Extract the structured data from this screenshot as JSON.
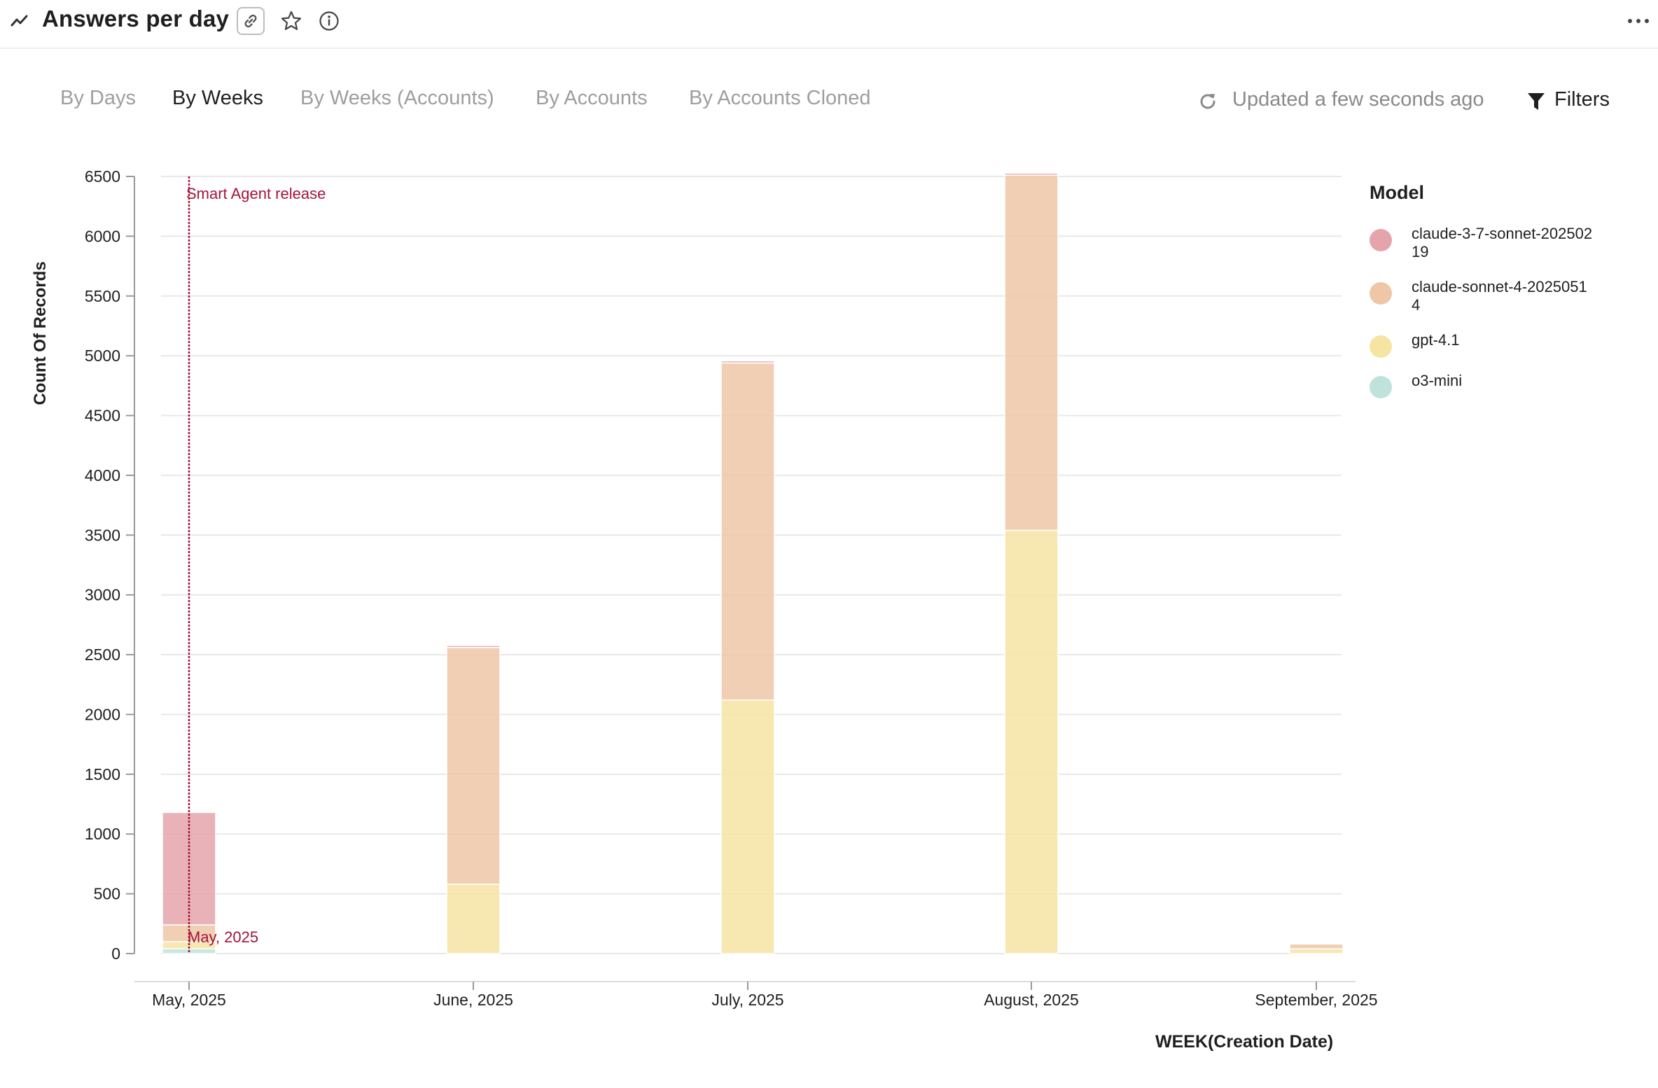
{
  "header": {
    "title": "Answers per day",
    "icons": [
      "trend-icon",
      "link-icon",
      "star-icon",
      "info-icon",
      "more-icon"
    ]
  },
  "tabs": [
    {
      "label": "By Days",
      "active": false
    },
    {
      "label": "By Weeks",
      "active": true
    },
    {
      "label": "By Weeks (Accounts)",
      "active": false
    },
    {
      "label": "By Accounts",
      "active": false
    },
    {
      "label": "By Accounts Cloned",
      "active": false
    }
  ],
  "status": {
    "updated_text": "Updated a few seconds ago"
  },
  "filters": {
    "label": "Filters"
  },
  "colors": {
    "claude-3-7-sonnet-20250219": "#e5a4ab",
    "claude-sonnet-4-20250514": "#efc7a8",
    "gpt-4.1": "#f6e4a3",
    "o3-mini": "#bde3da",
    "annotation": "#a3153b"
  },
  "chart_data": {
    "type": "bar",
    "stacked": true,
    "title": "",
    "xlabel": "WEEK(Creation Date)",
    "ylabel": "Count Of Records",
    "ylim": [
      0,
      6500
    ],
    "y_ticks": [
      0,
      500,
      1000,
      1500,
      2000,
      2500,
      3000,
      3500,
      4000,
      4500,
      5000,
      5500,
      6000,
      6500
    ],
    "grid": true,
    "legend_title": "Model",
    "legend_position": "right",
    "categories": [
      "May, 2025",
      "June, 2025",
      "July, 2025",
      "August, 2025",
      "September, 2025"
    ],
    "series": [
      {
        "name": "o3-mini",
        "values": [
          40,
          0,
          0,
          0,
          0
        ]
      },
      {
        "name": "gpt-4.1",
        "values": [
          60,
          580,
          2120,
          3540,
          40
        ]
      },
      {
        "name": "claude-sonnet-4-20250514",
        "values": [
          140,
          1980,
          2820,
          2970,
          40
        ]
      },
      {
        "name": "claude-3-7-sonnet-20250219",
        "values": [
          940,
          10,
          10,
          10,
          0
        ]
      }
    ],
    "annotations": [
      {
        "label": "Smart Agent release",
        "x": "May, 2025"
      },
      {
        "label": "May, 2025",
        "x": "May, 2025"
      }
    ]
  }
}
